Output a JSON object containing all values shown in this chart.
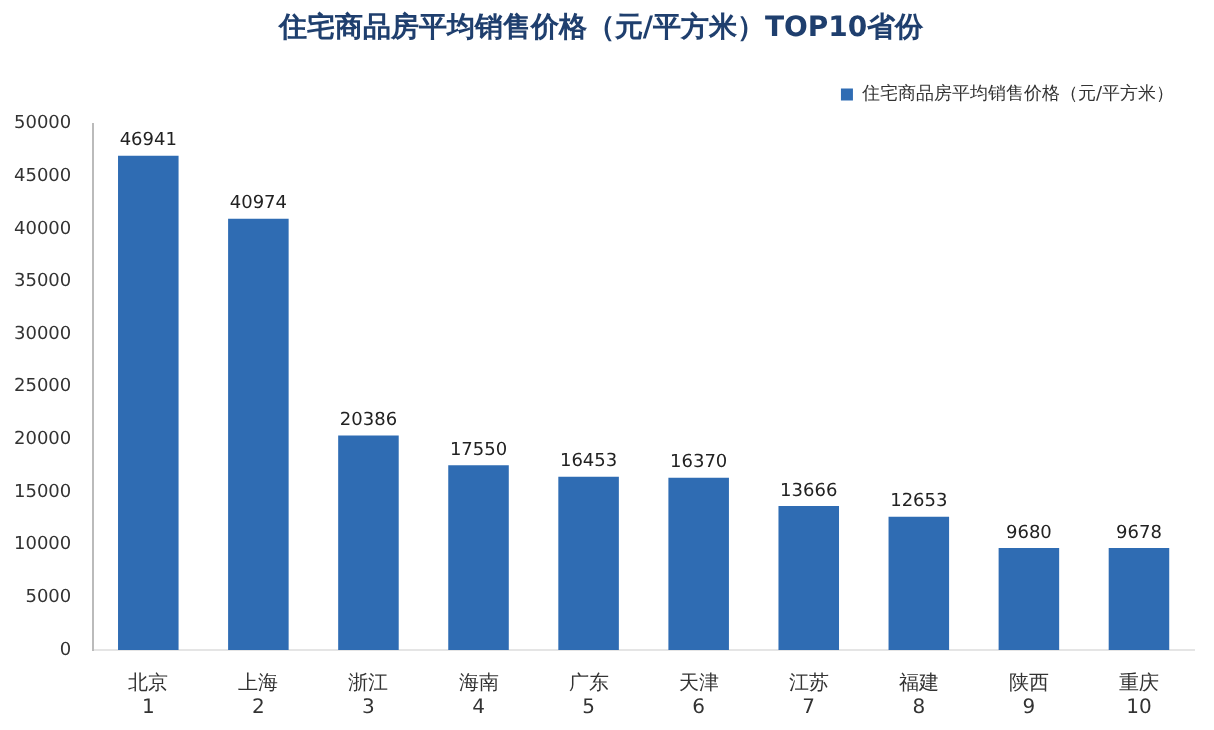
{
  "chart_data": {
    "type": "bar",
    "title": "住宅商品房平均销售价格（元/平方米）TOP10省份",
    "categories": [
      "北京\n1",
      "上海\n2",
      "浙江\n3",
      "海南\n4",
      "广东\n5",
      "天津\n6",
      "江苏\n7",
      "福建\n8",
      "陕西\n9",
      "重庆\n10"
    ],
    "series": [
      {
        "name": "住宅商品房平均销售价格（元/平方米）",
        "color": "#2f6cb3",
        "values": [
          46941,
          40974,
          20386,
          17550,
          16453,
          16370,
          13666,
          12653,
          9680,
          9678
        ]
      }
    ],
    "ylim": [
      0,
      50000
    ],
    "yticks": [
      0,
      5000,
      10000,
      15000,
      20000,
      25000,
      30000,
      35000,
      40000,
      45000,
      50000
    ],
    "grid": false,
    "legend": "top right",
    "data_labels": true
  }
}
